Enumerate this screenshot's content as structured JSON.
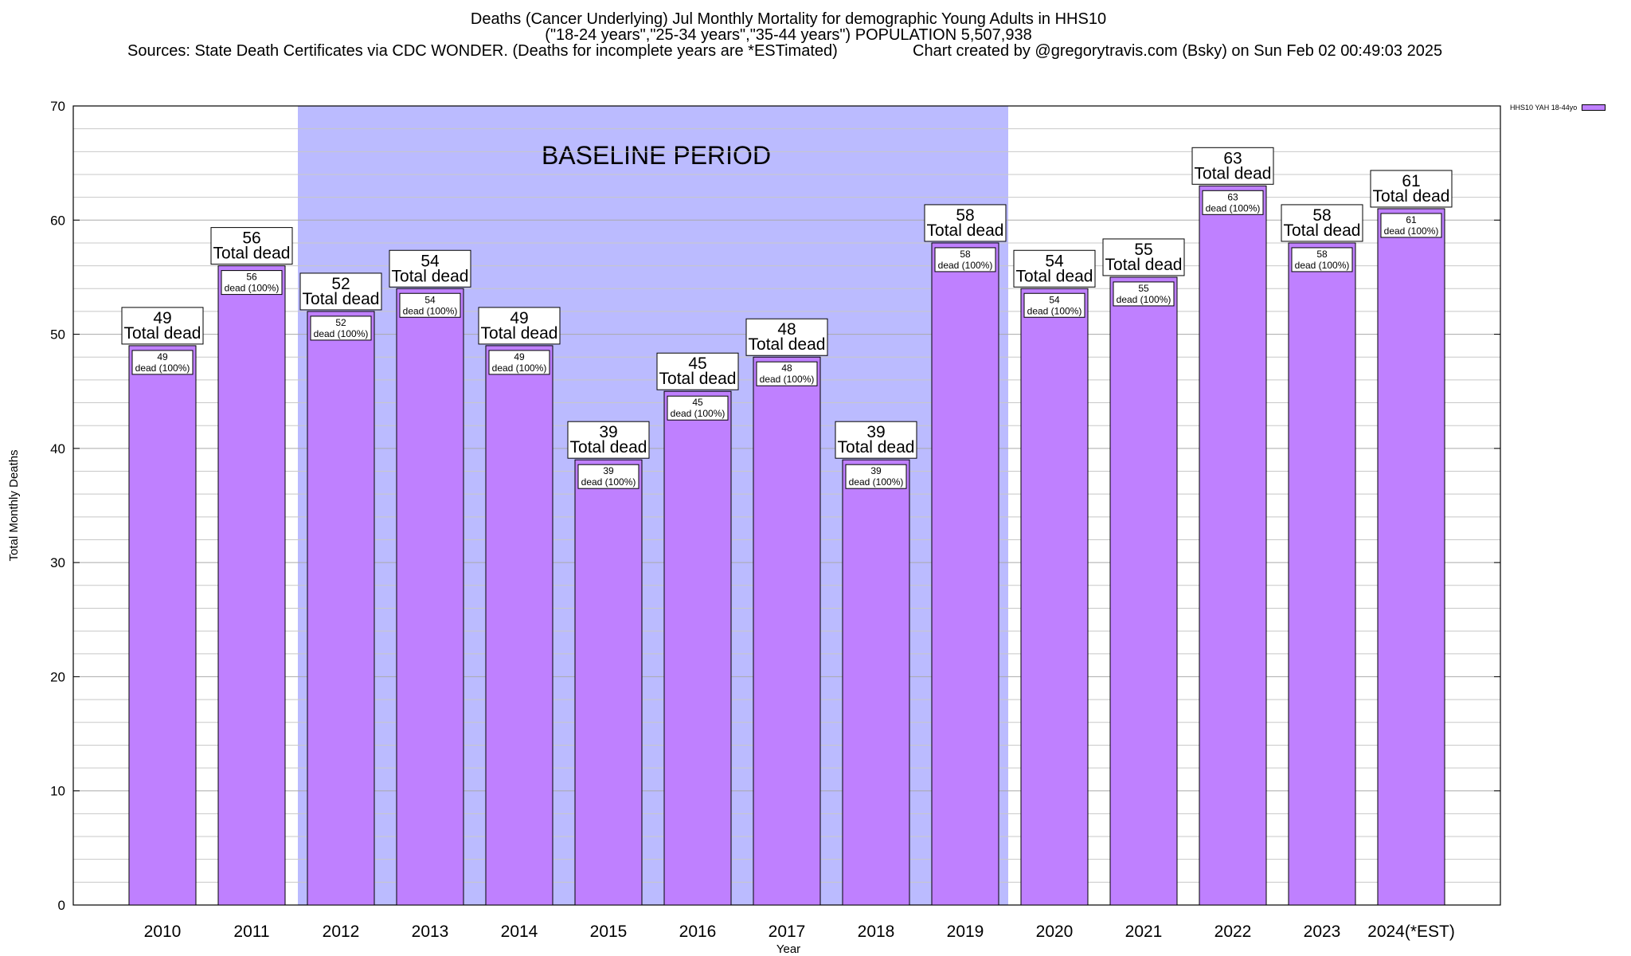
{
  "chart_data": {
    "type": "bar",
    "title_lines": [
      "Deaths (Cancer Underlying) Jul Monthly Mortality for demographic Young Adults in HHS10",
      "(\"18-24 years\",\"25-34 years\",\"35-44 years\") POPULATION 5,507,938"
    ],
    "sources": "Sources: State Death Certificates via CDC WONDER. (Deaths for incomplete years are *ESTimated)",
    "credit": "Chart created by @gregorytravis.com (Bsky) on Sun Feb 02 00:49:03 2025",
    "xlabel": "Year",
    "ylabel": "Total Monthly Deaths",
    "ylim": [
      0,
      70
    ],
    "yticks": [
      0,
      10,
      20,
      30,
      40,
      50,
      60,
      70
    ],
    "categories": [
      "2010",
      "2011",
      "2012",
      "2013",
      "2014",
      "2015",
      "2016",
      "2017",
      "2018",
      "2019",
      "2020",
      "2021",
      "2022",
      "2023",
      "2024(*EST)"
    ],
    "series": [
      {
        "name": "HHS10 YAH 18-44yo",
        "color": "#bf80ff",
        "values": [
          49,
          56,
          52,
          54,
          49,
          39,
          45,
          48,
          39,
          58,
          54,
          55,
          63,
          58,
          61
        ]
      }
    ],
    "top_label_suffix": "Total dead",
    "inner_label_suffix": "dead (100%)",
    "baseline": {
      "label": "BASELINE PERIOD",
      "from_category": "2012",
      "to_category": "2019",
      "color": "#bbbbff"
    },
    "grid": true,
    "legend_position": "top-right"
  }
}
